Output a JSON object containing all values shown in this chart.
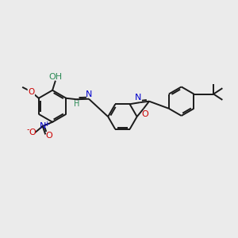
{
  "background_color": "#ebebeb",
  "bond_color": "#1a1a1a",
  "bond_width": 1.4,
  "atom_colors": {
    "C": "#1a1a1a",
    "N": "#0000cc",
    "O": "#cc0000",
    "H": "#2e8b57"
  },
  "figsize": [
    3.0,
    3.0
  ],
  "dpi": 100
}
